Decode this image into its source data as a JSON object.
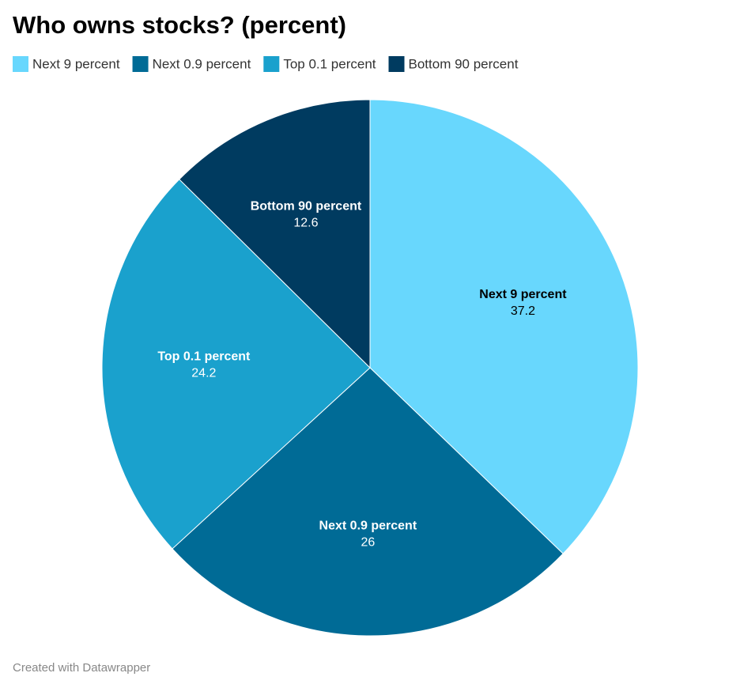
{
  "chart_data": {
    "type": "pie",
    "title": "Who owns stocks? (percent)",
    "categories": [
      "Next 9 percent",
      "Next 0.9 percent",
      "Top 0.1 percent",
      "Bottom 90 percent"
    ],
    "values": [
      37.2,
      26,
      24.2,
      12.6
    ],
    "colors": [
      "#68d7fd",
      "#006b96",
      "#1aa1cd",
      "#003b60"
    ],
    "legend": "top-left",
    "credit": "Created with Datawrapper"
  }
}
